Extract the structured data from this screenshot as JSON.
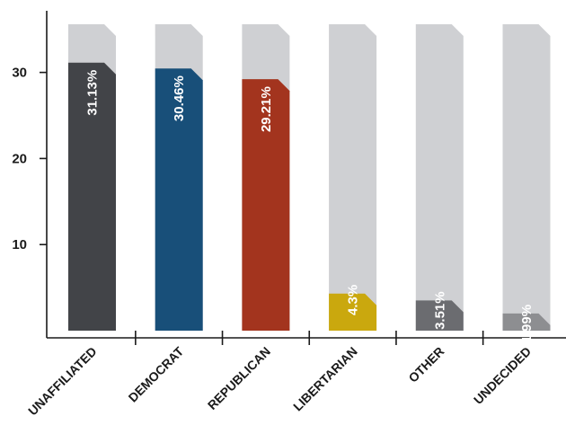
{
  "chart_data": {
    "type": "bar",
    "categories": [
      "UNAFFILIATED",
      "DEMOCRAT",
      "REPUBLICAN",
      "LIBERTARIAN",
      "OTHER",
      "UNDECIDED"
    ],
    "values": [
      31.13,
      30.46,
      29.21,
      4.3,
      3.51,
      1.99
    ],
    "data_labels": [
      "31.13%",
      "30.46%",
      "29.21%",
      "4.3%",
      "3.51%",
      "1.99%"
    ],
    "colors": [
      "#424448",
      "#184f79",
      "#a3341e",
      "#caa80e",
      "#6b6c70",
      "#8d8e91"
    ],
    "background_bar_color": "#cfd0d3",
    "data_label_colors": [
      "#ffffff",
      "#ffffff",
      "#ffffff",
      "#ffffff",
      "#ffffff",
      "#ffffff"
    ],
    "yticks": [
      "10",
      "20",
      "30"
    ],
    "ylim": [
      0,
      37
    ],
    "grid": false,
    "title": "",
    "xlabel": "",
    "ylabel": ""
  }
}
